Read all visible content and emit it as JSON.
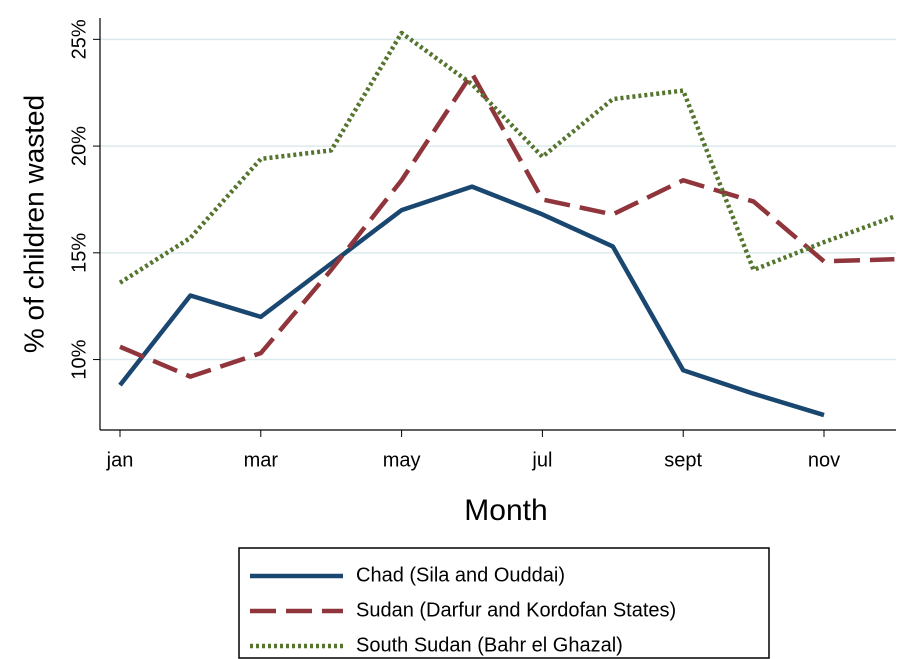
{
  "chart_data": {
    "type": "line",
    "x_label": "Month",
    "y_label": "% of children wasted",
    "categories": [
      "jan",
      null,
      "mar",
      null,
      "may",
      null,
      "jul",
      null,
      "sept",
      null,
      "nov",
      null
    ],
    "ylim": [
      6.7,
      26
    ],
    "yticks": [
      {
        "value": 10,
        "label": "10%"
      },
      {
        "value": 15,
        "label": "15%"
      },
      {
        "value": 20,
        "label": "20%"
      },
      {
        "value": 25,
        "label": "25%"
      }
    ],
    "grid": true,
    "series": [
      {
        "name": "Chad (Sila and Ouddai)",
        "color": "#1a476f",
        "dash": "solid",
        "values": [
          8.8,
          13.0,
          12.0,
          14.5,
          17.0,
          18.1,
          16.8,
          15.3,
          9.5,
          8.4,
          7.4,
          null
        ]
      },
      {
        "name": "Sudan (Darfur and Kordofan States)",
        "color": "#90353b",
        "dash": "dashed",
        "values": [
          10.6,
          9.2,
          10.3,
          14.2,
          18.4,
          23.4,
          17.5,
          16.8,
          18.4,
          17.4,
          14.6,
          14.7
        ]
      },
      {
        "name": "South Sudan (Bahr el Ghazal)",
        "color": "#55752f",
        "dash": "dotted",
        "values": [
          13.6,
          15.7,
          19.4,
          19.8,
          25.3,
          22.9,
          19.5,
          22.2,
          22.6,
          14.2,
          15.5,
          16.7
        ]
      }
    ]
  }
}
